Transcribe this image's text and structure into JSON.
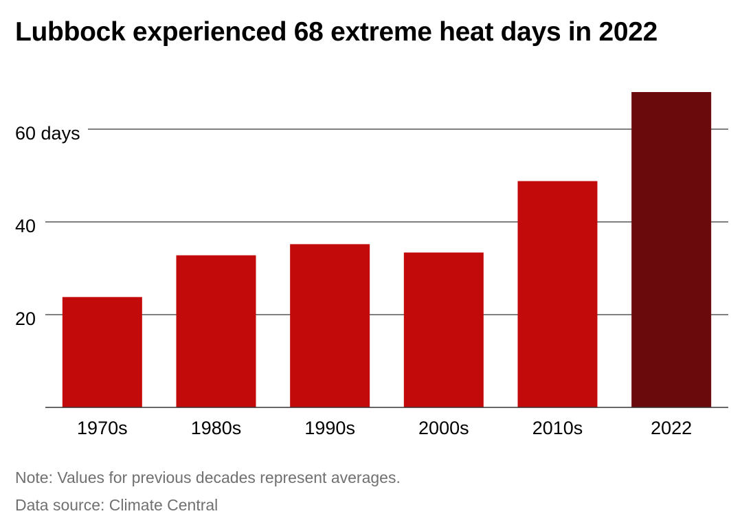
{
  "header": {
    "title": "Lubbock experienced 68 extreme heat days in 2022"
  },
  "footer": {
    "note": "Note: Values for previous decades represent averages.",
    "source": "Data source: Climate Central"
  },
  "colors": {
    "bar": "#c20a0a",
    "highlight_bar": "#6b0a0c",
    "gridline": "#555555",
    "text": "#000000",
    "footer_text": "#707070"
  },
  "chart_data": {
    "type": "bar",
    "title": "Lubbock experienced 68 extreme heat days in 2022",
    "xlabel": "",
    "ylabel": "",
    "categories": [
      "1970s",
      "1980s",
      "1990s",
      "2000s",
      "2010s",
      "2022"
    ],
    "values": [
      23.8,
      32.8,
      35.2,
      33.4,
      48.8,
      68
    ],
    "highlight_category": "2022",
    "ylim": [
      0,
      70
    ],
    "yticks": [
      20,
      40,
      60
    ],
    "ytick_labels": [
      "20",
      "40",
      "60 days"
    ],
    "grid": true,
    "legend": "none"
  }
}
